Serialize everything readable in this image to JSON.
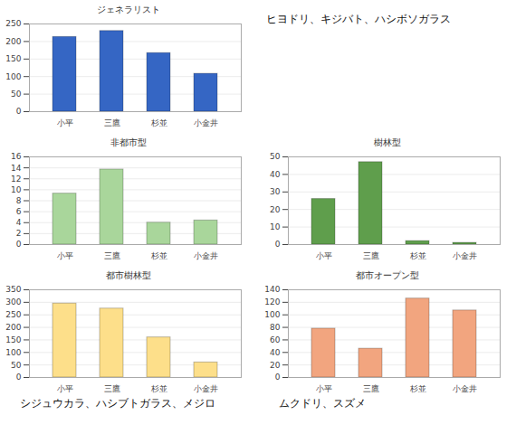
{
  "chart_data": [
    {
      "type": "bar",
      "title": "ジェネラリスト",
      "caption": "ヒヨドリ、キジバト、ハシボソガラス",
      "categories": [
        "小平",
        "三鷹",
        "杉並",
        "小金井"
      ],
      "values": [
        213,
        230,
        167,
        108
      ],
      "color": "#3566c4",
      "ylim": [
        0,
        250
      ],
      "yticks": [
        0,
        50,
        100,
        150,
        200,
        250
      ],
      "grid": true
    },
    {
      "type": "bar",
      "title": "非都市型",
      "categories": [
        "小平",
        "三鷹",
        "杉並",
        "小金井"
      ],
      "values": [
        9.3,
        13.7,
        4,
        4.4
      ],
      "color": "#a9d69b",
      "ylim": [
        0,
        16
      ],
      "yticks": [
        0,
        2,
        4,
        6,
        8,
        10,
        12,
        14,
        16
      ],
      "grid": true
    },
    {
      "type": "bar",
      "title": "樹林型",
      "categories": [
        "小平",
        "三鷹",
        "杉並",
        "小金井"
      ],
      "values": [
        26,
        47,
        2,
        1
      ],
      "color": "#5f9e4c",
      "ylim": [
        0,
        50
      ],
      "yticks": [
        0,
        10,
        20,
        30,
        40,
        50
      ],
      "grid": true
    },
    {
      "type": "bar",
      "title": "都市樹林型",
      "caption": "シジュウカラ、ハシブトガラス、メジロ",
      "categories": [
        "小平",
        "三鷹",
        "杉並",
        "小金井"
      ],
      "values": [
        295,
        275,
        160,
        60
      ],
      "color": "#fddf8a",
      "ylim": [
        0,
        350
      ],
      "yticks": [
        0,
        50,
        100,
        150,
        200,
        250,
        300,
        350
      ],
      "grid": true
    },
    {
      "type": "bar",
      "title": "都市オープン型",
      "caption": "ムクドリ、スズメ",
      "categories": [
        "小平",
        "三鷹",
        "杉並",
        "小金井"
      ],
      "values": [
        78,
        46,
        126,
        107
      ],
      "color": "#f2a57f",
      "ylim": [
        0,
        140
      ],
      "yticks": [
        0,
        20,
        40,
        60,
        80,
        100,
        120,
        140
      ],
      "grid": true
    }
  ]
}
